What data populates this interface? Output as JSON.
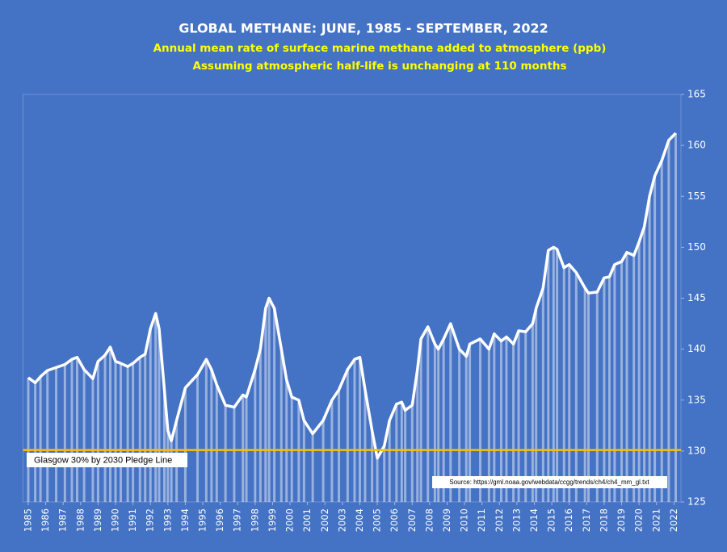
{
  "chart_data": {
    "type": "line",
    "title": "GLOBAL METHANE: JUNE, 1985 - SEPTEMBER, 2022",
    "subtitle": [
      "Annual mean rate of surface marine methane added to atmosphere (ppb)",
      "Assuming atmospheric half-life is unchanging at 110 months"
    ],
    "source": "Source: https://gml.noaa.gov/webdata/ccgg/trends/ch4/ch4_mm_gl.txt",
    "reference_line": {
      "value": 130.1,
      "label": "Glasgow 30% by 2030 Pledge Line",
      "color": "#ffc000"
    },
    "x": [
      1985.0,
      1985.4,
      1985.7,
      1986.1,
      1986.6,
      1987.1,
      1987.5,
      1987.8,
      1988.2,
      1988.7,
      1989.0,
      1989.4,
      1989.7,
      1990.0,
      1990.3,
      1990.7,
      1991.0,
      1991.4,
      1991.7,
      1992.0,
      1992.3,
      1992.5,
      1992.8,
      1993.0,
      1993.2,
      1993.5,
      1994.0,
      1994.7,
      1995.2,
      1995.5,
      1995.8,
      1996.3,
      1996.8,
      1997.3,
      1997.5,
      1998.0,
      1998.3,
      1998.6,
      1998.8,
      1999.1,
      1999.5,
      1999.8,
      2000.1,
      2000.5,
      2000.8,
      2001.3,
      2001.9,
      2002.4,
      2002.8,
      2003.3,
      2003.7,
      2004.0,
      2004.3,
      2004.7,
      2005.0,
      2005.4,
      2005.7,
      2006.1,
      2006.4,
      2006.6,
      2007.0,
      2007.3,
      2007.5,
      2007.9,
      2008.3,
      2008.5,
      2008.8,
      2009.2,
      2009.7,
      2010.1,
      2010.3,
      2010.9,
      2011.4,
      2011.7,
      2012.1,
      2012.4,
      2012.8,
      2013.1,
      2013.5,
      2013.9,
      2014.1,
      2014.5,
      2014.8,
      2015.1,
      2015.3,
      2015.7,
      2016.0,
      2016.4,
      2016.9,
      2017.1,
      2017.6,
      2018.0,
      2018.3,
      2018.6,
      2019.0,
      2019.3,
      2019.7,
      2020.0,
      2020.3,
      2020.6,
      2020.9,
      2021.3,
      2021.7,
      2022.1
    ],
    "series": [
      {
        "name": "Methane",
        "color": "#ffffff",
        "values": [
          137.2,
          136.7,
          137.3,
          137.9,
          138.2,
          138.5,
          139.0,
          139.2,
          138.0,
          137.1,
          138.8,
          139.4,
          140.2,
          138.8,
          138.6,
          138.3,
          138.6,
          139.2,
          139.5,
          142.0,
          143.5,
          142.0,
          136.0,
          132.0,
          131.0,
          133.0,
          136.2,
          137.5,
          139.0,
          138.0,
          136.5,
          134.5,
          134.3,
          135.5,
          135.3,
          138.0,
          140.0,
          144.0,
          145.0,
          144.0,
          140.0,
          137.0,
          135.3,
          135.0,
          133.0,
          131.7,
          133.0,
          135.0,
          136.0,
          138.0,
          139.0,
          139.2,
          136.0,
          132.0,
          129.3,
          130.5,
          133.0,
          134.6,
          134.8,
          134.0,
          134.5,
          138.0,
          141.0,
          142.2,
          140.5,
          140.0,
          141.0,
          142.5,
          140.0,
          139.3,
          140.5,
          141.0,
          140.0,
          141.5,
          140.8,
          141.2,
          140.5,
          141.8,
          141.7,
          142.5,
          144.0,
          146.0,
          149.7,
          150.0,
          149.8,
          148.0,
          148.3,
          147.5,
          146.0,
          145.5,
          145.6,
          147.0,
          147.1,
          148.3,
          148.6,
          149.5,
          149.2,
          150.5,
          152.0,
          155.0,
          157.0,
          158.5,
          160.5,
          161.2
        ]
      }
    ],
    "xlim": [
      1984.7,
      2022.4
    ],
    "xticks": [
      1985,
      1986,
      1987,
      1988,
      1989,
      1990,
      1991,
      1992,
      1993,
      1994,
      1995,
      1996,
      1997,
      1998,
      1999,
      2000,
      2001,
      2002,
      2003,
      2004,
      2005,
      2006,
      2007,
      2008,
      2009,
      2010,
      2011,
      2012,
      2013,
      2014,
      2015,
      2016,
      2017,
      2018,
      2019,
      2020,
      2021,
      2022
    ],
    "ylim": [
      125,
      165
    ],
    "yticks": [
      125,
      130,
      135,
      140,
      145,
      150,
      155,
      160,
      165
    ],
    "background": "#4472c4"
  }
}
